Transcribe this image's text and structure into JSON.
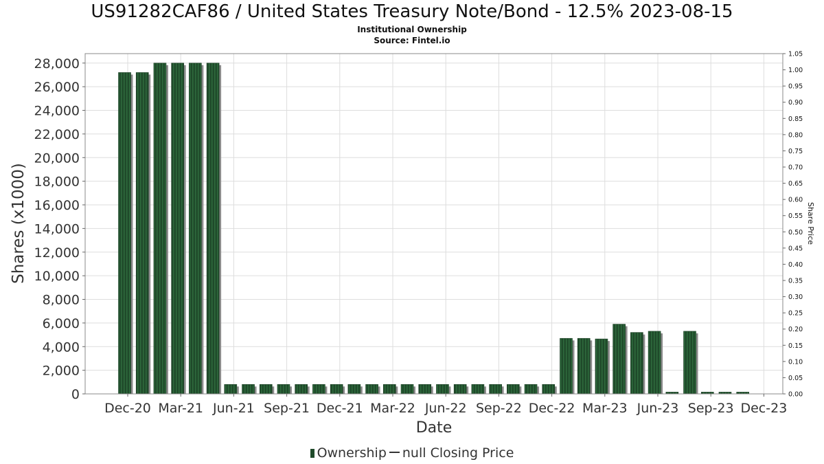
{
  "header": {
    "title": "US91282CAF86 / United States Treasury Note/Bond - 12.5% 2023-08-15",
    "subtitle": "Institutional Ownership",
    "source": "Source: Fintel.io"
  },
  "legend": {
    "ownership": "Ownership",
    "price": "null Closing Price"
  },
  "colors": {
    "bar": "#1f4a2a",
    "bar_stripe": "#2f6b3d",
    "shadow": "#8c8c8c",
    "grid": "#dddddd"
  },
  "chart_data": {
    "type": "bar",
    "xlabel": "Date",
    "ylabel": "Shares (x1000)",
    "y2label": "Share Price",
    "x_tick_labels": [
      "Dec-20",
      "Mar-21",
      "Jun-21",
      "Sep-21",
      "Dec-21",
      "Mar-22",
      "Jun-22",
      "Sep-22",
      "Dec-22",
      "Mar-23",
      "Jun-23",
      "Sep-23",
      "Dec-23"
    ],
    "ylim": [
      0,
      28800
    ],
    "y_ticks": [
      0,
      2000,
      4000,
      6000,
      8000,
      10000,
      12000,
      14000,
      16000,
      18000,
      20000,
      22000,
      24000,
      26000,
      28000
    ],
    "y_tick_labels": [
      "0",
      "2,000",
      "4,000",
      "6,000",
      "8,000",
      "10,000",
      "12,000",
      "14,000",
      "16,000",
      "18,000",
      "20,000",
      "22,000",
      "24,000",
      "26,000",
      "28,000"
    ],
    "y2lim": [
      0,
      1.05
    ],
    "y2_tick_labels": [
      "0.00",
      "0.05",
      "0.10",
      "0.15",
      "0.20",
      "0.25",
      "0.30",
      "0.35",
      "0.40",
      "0.45",
      "0.50",
      "0.55",
      "0.60",
      "0.65",
      "0.70",
      "0.75",
      "0.80",
      "0.85",
      "0.90",
      "0.95",
      "1.00",
      "1.05"
    ],
    "grid": true,
    "legend_position": "bottom",
    "series": [
      {
        "name": "Ownership",
        "values": [
          27200,
          27200,
          28000,
          28000,
          28000,
          28000,
          800,
          800,
          800,
          800,
          800,
          800,
          800,
          800,
          800,
          800,
          800,
          800,
          800,
          800,
          800,
          800,
          800,
          800,
          800,
          4700,
          4700,
          4650,
          5900,
          5200,
          5300,
          150,
          5300,
          150,
          150,
          150
        ]
      }
    ]
  }
}
